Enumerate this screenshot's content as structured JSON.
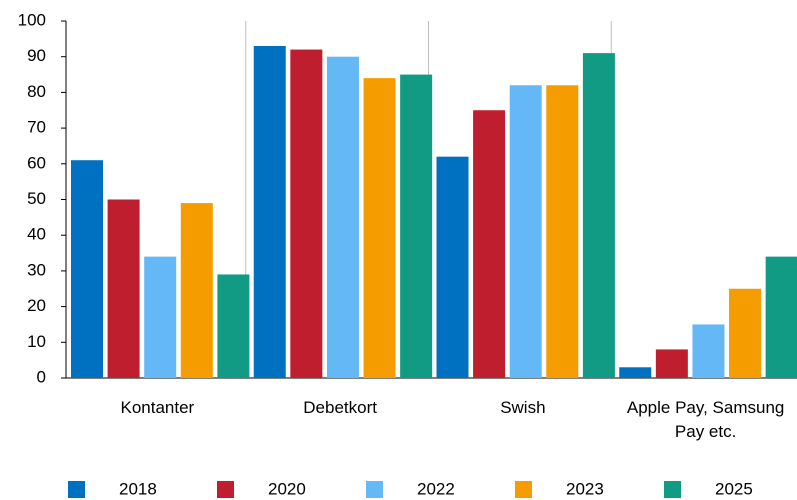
{
  "chart_data": {
    "type": "bar",
    "categories": [
      "Kontanter",
      "Debetkort",
      "Swish",
      "Apple Pay, Samsung Pay etc."
    ],
    "series": [
      {
        "name": "2018",
        "color": "#0070c0",
        "values": [
          61,
          93,
          62,
          3
        ]
      },
      {
        "name": "2020",
        "color": "#be1e2d",
        "values": [
          50,
          92,
          75,
          8
        ]
      },
      {
        "name": "2022",
        "color": "#63b8f5",
        "values": [
          34,
          90,
          82,
          15
        ]
      },
      {
        "name": "2023",
        "color": "#f59c00",
        "values": [
          49,
          84,
          82,
          25
        ]
      },
      {
        "name": "2025",
        "color": "#119a84",
        "values": [
          29,
          85,
          91,
          34
        ]
      }
    ],
    "ylim": [
      0,
      100
    ],
    "yticks": [
      0,
      10,
      20,
      30,
      40,
      50,
      60,
      70,
      80,
      90,
      100
    ],
    "legend": "bottom"
  }
}
